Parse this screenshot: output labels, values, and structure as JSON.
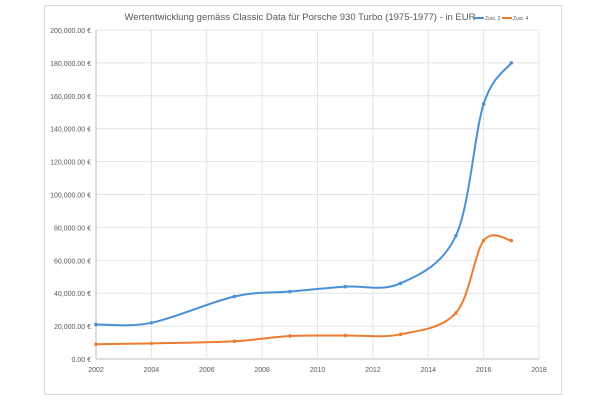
{
  "chart_data": {
    "type": "line",
    "title": "Wertentwicklung gemäss Classic Data für Porsche 930 Turbo (1975-1977) - in EUR",
    "xlabel": "",
    "ylabel": "",
    "xlim": [
      2002,
      2018
    ],
    "ylim": [
      0,
      200000
    ],
    "xticks": [
      2002,
      2004,
      2006,
      2008,
      2010,
      2012,
      2014,
      2016,
      2018
    ],
    "yticks": [
      0,
      20000,
      40000,
      60000,
      80000,
      100000,
      120000,
      140000,
      160000,
      180000,
      200000
    ],
    "ytick_labels": [
      "0.00 €",
      "20,000.00 €",
      "40,000.00 €",
      "60,000.00 €",
      "80,000.00 €",
      "100,000.00 €",
      "120,000.00 €",
      "140,000.00 €",
      "160,000.00 €",
      "180,000.00 €",
      "200,000.00 €"
    ],
    "grid": true,
    "legend": "top-right",
    "series": [
      {
        "name": "Zust. 2",
        "color": "#4a90d9",
        "x": [
          2002,
          2004,
          2007,
          2009,
          2011,
          2013,
          2015,
          2016,
          2017
        ],
        "y": [
          21000,
          22000,
          38000,
          41000,
          44000,
          46000,
          75000,
          155000,
          180000
        ]
      },
      {
        "name": "Zust. 4",
        "color": "#ed7d31",
        "x": [
          2002,
          2004,
          2007,
          2009,
          2011,
          2013,
          2015,
          2016,
          2017
        ],
        "y": [
          9000,
          9500,
          10800,
          14000,
          14300,
          15000,
          28000,
          72000,
          72000
        ]
      }
    ]
  }
}
